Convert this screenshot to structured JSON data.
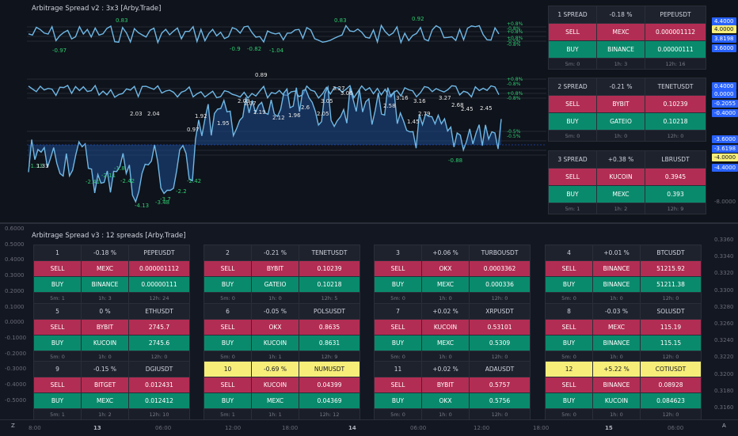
{
  "top_indicator": {
    "title": "Arbitrage Spread v2 : 3x3 [Arby.Trade]"
  },
  "bottom_indicator": {
    "title": "Arbitrage Spread v3 : 12 spreads [Arby.Trade]"
  },
  "top_chart_labels": {
    "line1_peaks": [
      "0.83",
      "0.83",
      "0.92",
      "-0.97",
      "-0.9",
      "-0.82",
      "-1.04"
    ],
    "line2_values": [
      "0.89",
      "2.03",
      "2.04",
      "1.92",
      "1.95",
      "0.97",
      "2.19",
      "2.07",
      "2.09",
      "1.96",
      "2.6",
      "2.12",
      "2.05",
      "3.05",
      "3.27",
      "3.06",
      "2.58",
      "3.16",
      "3.16",
      "1.45",
      "2.79",
      "2.68",
      "2.45",
      "2.45",
      "3.27",
      "-4.13",
      "-3.7",
      "-2.2",
      "-2.42",
      "-2.41",
      "-2.11",
      "-2.42",
      "-3.48",
      "-1.33",
      "-1.8",
      "-0.88",
      "1.33"
    ],
    "right_pct": [
      "+0.8%",
      "-0.8%",
      "+0.8%",
      "+0.8%",
      "-0.5%",
      "-0.8%",
      "+0.8%",
      "-0.8%",
      "+0.8%",
      "-0.8%",
      "-0.5%",
      "-0.5%"
    ]
  },
  "top_tables": [
    {
      "header": [
        "1 SPREAD",
        "-0.18 %",
        "PEPEUSDT"
      ],
      "sell": [
        "SELL",
        "MEXC",
        "0.000001112"
      ],
      "buy": [
        "BUY",
        "BINANCE",
        "0.00000111"
      ],
      "footer": [
        "5m: 0",
        "1h: 3",
        "12h: 16"
      ]
    },
    {
      "header": [
        "2 SPREAD",
        "-0.21 %",
        "TENETUSDT"
      ],
      "sell": [
        "SELL",
        "BYBIT",
        "0.10239"
      ],
      "buy": [
        "BUY",
        "GATEIO",
        "0.10218"
      ],
      "footer": [
        "5m: 0",
        "1h: 0",
        "12h: 0"
      ]
    },
    {
      "header": [
        "3 SPREAD",
        "+0.38 %",
        "LBRUSDT"
      ],
      "sell": [
        "SELL",
        "KUCOIN",
        "0.3945"
      ],
      "buy": [
        "BUY",
        "MEXC",
        "0.393"
      ],
      "footer": [
        "5m: 1",
        "1h: 2",
        "12h: 9"
      ]
    }
  ],
  "bottom_tables": [
    {
      "header": [
        "1",
        "-0.18 %",
        "PEPEUSDT"
      ],
      "sell": [
        "SELL",
        "MEXC",
        "0.000001112"
      ],
      "buy": [
        "BUY",
        "BINANCE",
        "0.00000111"
      ],
      "footer": [
        "5m: 1",
        "1h: 3",
        "12h: 24"
      ],
      "highlight": false
    },
    {
      "header": [
        "2",
        "-0.21 %",
        "TENETUSDT"
      ],
      "sell": [
        "SELL",
        "BYBIT",
        "0.10239"
      ],
      "buy": [
        "BUY",
        "GATEIO",
        "0.10218"
      ],
      "footer": [
        "5m: 0",
        "1h: 0",
        "12h: 5"
      ],
      "highlight": false
    },
    {
      "header": [
        "3",
        "+0.06 %",
        "TURBOUSDT"
      ],
      "sell": [
        "SELL",
        "OKX",
        "0.0003362"
      ],
      "buy": [
        "BUY",
        "MEXC",
        "0.000336"
      ],
      "footer": [
        "5m: 0",
        "1h: 0",
        "12h: 0"
      ],
      "highlight": false
    },
    {
      "header": [
        "4",
        "+0.01 %",
        "BTCUSDT"
      ],
      "sell": [
        "SELL",
        "BINANCE",
        "51215.92"
      ],
      "buy": [
        "BUY",
        "BINANCE",
        "51211.38"
      ],
      "footer": [
        "5m: 0",
        "1h: 0",
        "12h: 0"
      ],
      "highlight": false
    },
    {
      "header": [
        "5",
        "0 %",
        "ETHUSDT"
      ],
      "sell": [
        "SELL",
        "BYBIT",
        "2745.7"
      ],
      "buy": [
        "BUY",
        "KUCOIN",
        "2745.6"
      ],
      "footer": [
        "5m: 0",
        "1h: 0",
        "12h: 0"
      ],
      "highlight": false
    },
    {
      "header": [
        "6",
        "-0.05 %",
        "POLSUSDT"
      ],
      "sell": [
        "SELL",
        "OKX",
        "0.8635"
      ],
      "buy": [
        "BUY",
        "KUCOIN",
        "0.8631"
      ],
      "footer": [
        "5m: 0",
        "1h: 1",
        "12h: 9"
      ],
      "highlight": false
    },
    {
      "header": [
        "7",
        "+0.02 %",
        "XRPUSDT"
      ],
      "sell": [
        "SELL",
        "KUCOIN",
        "0.53101"
      ],
      "buy": [
        "BUY",
        "MEXC",
        "0.5309"
      ],
      "footer": [
        "5m: 0",
        "1h: 0",
        "12h: 0"
      ],
      "highlight": false
    },
    {
      "header": [
        "8",
        "-0.03 %",
        "SOLUSDT"
      ],
      "sell": [
        "SELL",
        "MEXC",
        "115.19"
      ],
      "buy": [
        "BUY",
        "BINANCE",
        "115.15"
      ],
      "footer": [
        "5m: 0",
        "1h: 0",
        "12h: 0"
      ],
      "highlight": false
    },
    {
      "header": [
        "9",
        "-0.15 %",
        "DGIUSDT"
      ],
      "sell": [
        "SELL",
        "BITGET",
        "0.012431"
      ],
      "buy": [
        "BUY",
        "MEXC",
        "0.012412"
      ],
      "footer": [
        "5m: 1",
        "1h: 2",
        "12h: 10"
      ],
      "highlight": false
    },
    {
      "header": [
        "10",
        "-0.69 %",
        "NUMUSDT"
      ],
      "sell": [
        "SELL",
        "KUCOIN",
        "0.04399"
      ],
      "buy": [
        "BUY",
        "MEXC",
        "0.04369"
      ],
      "footer": [
        "5m: 1",
        "1h: 1",
        "12h: 12"
      ],
      "highlight": true
    },
    {
      "header": [
        "11",
        "+0.02 %",
        "ADAUSDT"
      ],
      "sell": [
        "SELL",
        "BYBIT",
        "0.5757"
      ],
      "buy": [
        "BUY",
        "OKX",
        "0.5756"
      ],
      "footer": [
        "5m: 0",
        "1h: 0",
        "12h: 0"
      ],
      "highlight": false
    },
    {
      "header": [
        "12",
        "+5.22 %",
        "COTIUSDT"
      ],
      "sell": [
        "SELL",
        "BINANCE",
        "0.08928"
      ],
      "buy": [
        "BUY",
        "KUCOIN",
        "0.084623"
      ],
      "footer": [
        "5m: 0",
        "1h: 0",
        "12h: 0"
      ],
      "highlight": true
    }
  ],
  "top_right_axis": [
    {
      "label": "4.4000",
      "color": "#2962ff"
    },
    {
      "label": "4.0000",
      "color": "#f7ee7a"
    },
    {
      "label": "3.8198",
      "color": "#2962ff"
    },
    {
      "label": "3.6000",
      "color": "#2962ff"
    },
    {
      "label": "0.4000",
      "color": "#2962ff"
    },
    {
      "label": "0.0000",
      "color": "#2962ff"
    },
    {
      "label": "-0.2055",
      "color": "#2962ff"
    },
    {
      "label": "-0.4000",
      "color": "#2962ff"
    },
    {
      "label": "-3.6000",
      "color": "#2962ff"
    },
    {
      "label": "-3.6198",
      "color": "#2962ff"
    },
    {
      "label": "-4.0000",
      "color": "#f7ee7a"
    },
    {
      "label": "-4.4000",
      "color": "#2962ff"
    },
    {
      "label": "-8.0000",
      "color": ""
    }
  ],
  "bottom_left_axis": [
    "0.6000",
    "0.5000",
    "0.4000",
    "0.3000",
    "0.2000",
    "0.1000",
    "0.0000",
    "-0.1000",
    "-0.2000",
    "-0.3000",
    "-0.4000",
    "-0.5000"
  ],
  "bottom_right_axis": [
    "0.3360",
    "0.3340",
    "0.3320",
    "0.3300",
    "0.3280",
    "0.3260",
    "0.3240",
    "0.3220",
    "0.3200",
    "0.3180",
    "0.3160"
  ],
  "time_axis": [
    {
      "label": "8:00",
      "bold": false
    },
    {
      "label": "13",
      "bold": true
    },
    {
      "label": "06:00",
      "bold": false
    },
    {
      "label": "12:00",
      "bold": false
    },
    {
      "label": "18:00",
      "bold": false
    },
    {
      "label": "14",
      "bold": true
    },
    {
      "label": "06:00",
      "bold": false
    },
    {
      "label": "12:00",
      "bold": false
    },
    {
      "label": "18:00",
      "bold": false
    },
    {
      "label": "15",
      "bold": true
    },
    {
      "label": "06:00",
      "bold": false
    }
  ],
  "corner_left": "Z",
  "corner_right": "A"
}
